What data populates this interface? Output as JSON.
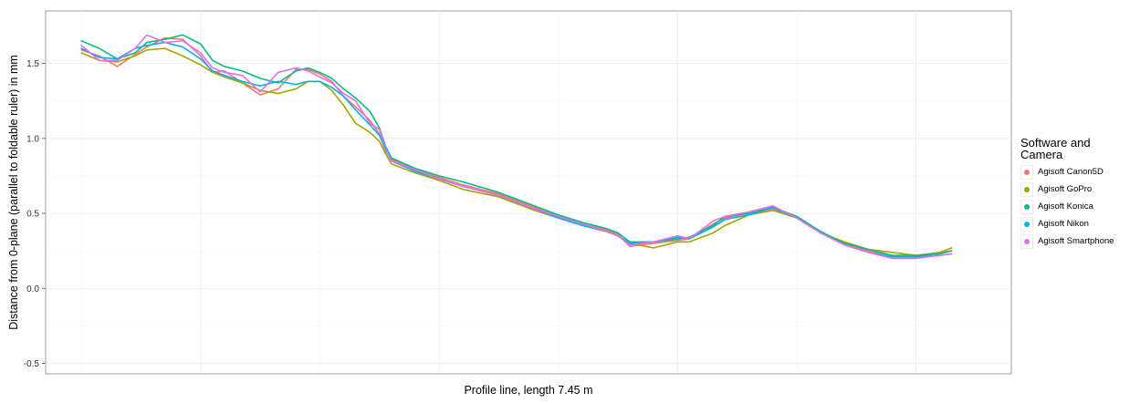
{
  "chart_data": {
    "type": "line",
    "xlabel": "Profile line, length 7.45 m",
    "ylabel": "Distance from 0-plane (parallel to foldable ruler) in mm",
    "ylim": [
      -0.57,
      1.85
    ],
    "xlim": [
      -0.3,
      7.8
    ],
    "yticks": [
      {
        "value": -0.5,
        "label": "-0.5"
      },
      {
        "value": 0.0,
        "label": "0.0"
      },
      {
        "value": 0.5,
        "label": "0.5"
      },
      {
        "value": 1.0,
        "label": "1.0"
      },
      {
        "value": 1.5,
        "label": "1.5"
      }
    ],
    "grid": true,
    "legend": {
      "title_lines": [
        "Software and",
        "Camera"
      ],
      "placement": "right"
    },
    "series": [
      {
        "name": "Agisoft Canon5D",
        "color": "#F8766D",
        "x": [
          0,
          0.15,
          0.3,
          0.45,
          0.55,
          0.7,
          0.85,
          1.0,
          1.1,
          1.2,
          1.35,
          1.5,
          1.65,
          1.8,
          1.9,
          2.0,
          2.1,
          2.2,
          2.3,
          2.42,
          2.5,
          2.55,
          2.6,
          2.8,
          3.0,
          3.2,
          3.5,
          3.8,
          4.0,
          4.2,
          4.4,
          4.5,
          4.6,
          4.8,
          5.0,
          5.1,
          5.3,
          5.4,
          5.6,
          5.8,
          6.0,
          6.2,
          6.4,
          6.6,
          6.8,
          7.0,
          7.2,
          7.3
        ],
        "y": [
          1.59,
          1.55,
          1.48,
          1.56,
          1.61,
          1.67,
          1.66,
          1.55,
          1.44,
          1.45,
          1.37,
          1.29,
          1.33,
          1.46,
          1.46,
          1.43,
          1.38,
          1.28,
          1.21,
          1.12,
          1.03,
          0.92,
          0.86,
          0.79,
          0.74,
          0.69,
          0.63,
          0.54,
          0.48,
          0.43,
          0.39,
          0.36,
          0.28,
          0.3,
          0.32,
          0.33,
          0.43,
          0.47,
          0.5,
          0.53,
          0.47,
          0.37,
          0.3,
          0.25,
          0.21,
          0.21,
          0.24,
          0.25
        ]
      },
      {
        "name": "Agisoft GoPro",
        "color": "#A3A500",
        "x": [
          0,
          0.15,
          0.3,
          0.45,
          0.55,
          0.7,
          0.85,
          1.0,
          1.1,
          1.2,
          1.35,
          1.5,
          1.65,
          1.8,
          1.9,
          2.0,
          2.1,
          2.2,
          2.3,
          2.42,
          2.5,
          2.55,
          2.6,
          2.8,
          3.0,
          3.2,
          3.5,
          3.8,
          4.0,
          4.2,
          4.4,
          4.5,
          4.6,
          4.8,
          5.0,
          5.1,
          5.3,
          5.4,
          5.6,
          5.8,
          6.0,
          6.2,
          6.4,
          6.6,
          6.8,
          7.0,
          7.2,
          7.3
        ],
        "y": [
          1.57,
          1.52,
          1.51,
          1.55,
          1.59,
          1.6,
          1.55,
          1.49,
          1.44,
          1.41,
          1.37,
          1.32,
          1.3,
          1.33,
          1.38,
          1.38,
          1.32,
          1.22,
          1.1,
          1.04,
          0.98,
          0.9,
          0.83,
          0.77,
          0.72,
          0.66,
          0.61,
          0.52,
          0.47,
          0.42,
          0.38,
          0.35,
          0.3,
          0.27,
          0.31,
          0.31,
          0.37,
          0.42,
          0.49,
          0.52,
          0.47,
          0.37,
          0.31,
          0.26,
          0.24,
          0.22,
          0.24,
          0.27
        ]
      },
      {
        "name": "Agisoft Konica",
        "color": "#00BF7D",
        "x": [
          0,
          0.15,
          0.3,
          0.45,
          0.55,
          0.7,
          0.85,
          1.0,
          1.1,
          1.2,
          1.35,
          1.5,
          1.65,
          1.8,
          1.9,
          2.0,
          2.1,
          2.2,
          2.3,
          2.42,
          2.5,
          2.55,
          2.6,
          2.8,
          3.0,
          3.2,
          3.5,
          3.8,
          4.0,
          4.2,
          4.4,
          4.5,
          4.6,
          4.8,
          5.0,
          5.1,
          5.3,
          5.4,
          5.6,
          5.8,
          6.0,
          6.2,
          6.4,
          6.6,
          6.8,
          7.0,
          7.2,
          7.3
        ],
        "y": [
          1.65,
          1.6,
          1.53,
          1.57,
          1.64,
          1.66,
          1.69,
          1.63,
          1.52,
          1.48,
          1.45,
          1.4,
          1.37,
          1.45,
          1.47,
          1.44,
          1.4,
          1.33,
          1.27,
          1.18,
          1.07,
          0.95,
          0.87,
          0.8,
          0.75,
          0.71,
          0.64,
          0.55,
          0.49,
          0.44,
          0.4,
          0.37,
          0.31,
          0.31,
          0.33,
          0.34,
          0.42,
          0.48,
          0.5,
          0.54,
          0.48,
          0.38,
          0.3,
          0.26,
          0.22,
          0.22,
          0.23,
          0.25
        ]
      },
      {
        "name": "Agisoft Nikon",
        "color": "#00B0F6",
        "x": [
          0,
          0.15,
          0.3,
          0.45,
          0.55,
          0.7,
          0.85,
          1.0,
          1.1,
          1.2,
          1.35,
          1.5,
          1.65,
          1.8,
          1.9,
          2.0,
          2.1,
          2.2,
          2.3,
          2.42,
          2.5,
          2.55,
          2.6,
          2.8,
          3.0,
          3.2,
          3.5,
          3.8,
          4.0,
          4.2,
          4.4,
          4.5,
          4.6,
          4.8,
          5.0,
          5.1,
          5.3,
          5.4,
          5.6,
          5.8,
          6.0,
          6.2,
          6.4,
          6.6,
          6.8,
          7.0,
          7.2,
          7.3
        ],
        "y": [
          1.6,
          1.54,
          1.53,
          1.6,
          1.62,
          1.64,
          1.61,
          1.53,
          1.45,
          1.42,
          1.38,
          1.35,
          1.38,
          1.36,
          1.38,
          1.38,
          1.34,
          1.28,
          1.19,
          1.09,
          1.02,
          0.93,
          0.85,
          0.78,
          0.73,
          0.68,
          0.62,
          0.53,
          0.47,
          0.42,
          0.38,
          0.35,
          0.3,
          0.31,
          0.34,
          0.33,
          0.41,
          0.46,
          0.49,
          0.54,
          0.47,
          0.37,
          0.29,
          0.24,
          0.21,
          0.21,
          0.22,
          0.23
        ]
      },
      {
        "name": "Agisoft Smartphone",
        "color": "#E76BF3",
        "x": [
          0,
          0.15,
          0.3,
          0.45,
          0.55,
          0.7,
          0.85,
          1.0,
          1.1,
          1.2,
          1.35,
          1.5,
          1.65,
          1.8,
          1.9,
          2.0,
          2.1,
          2.2,
          2.3,
          2.42,
          2.5,
          2.55,
          2.6,
          2.8,
          3.0,
          3.2,
          3.5,
          3.8,
          4.0,
          4.2,
          4.4,
          4.5,
          4.6,
          4.8,
          5.0,
          5.1,
          5.3,
          5.4,
          5.6,
          5.8,
          6.0,
          6.2,
          6.4,
          6.6,
          6.8,
          7.0,
          7.2,
          7.3
        ],
        "y": [
          1.62,
          1.52,
          1.52,
          1.6,
          1.69,
          1.64,
          1.65,
          1.57,
          1.47,
          1.44,
          1.42,
          1.31,
          1.44,
          1.47,
          1.45,
          1.41,
          1.37,
          1.3,
          1.25,
          1.1,
          1.06,
          0.94,
          0.85,
          0.79,
          0.73,
          0.68,
          0.62,
          0.53,
          0.48,
          0.43,
          0.38,
          0.35,
          0.29,
          0.31,
          0.35,
          0.33,
          0.45,
          0.48,
          0.51,
          0.55,
          0.47,
          0.37,
          0.29,
          0.24,
          0.2,
          0.2,
          0.22,
          0.23
        ]
      }
    ]
  }
}
